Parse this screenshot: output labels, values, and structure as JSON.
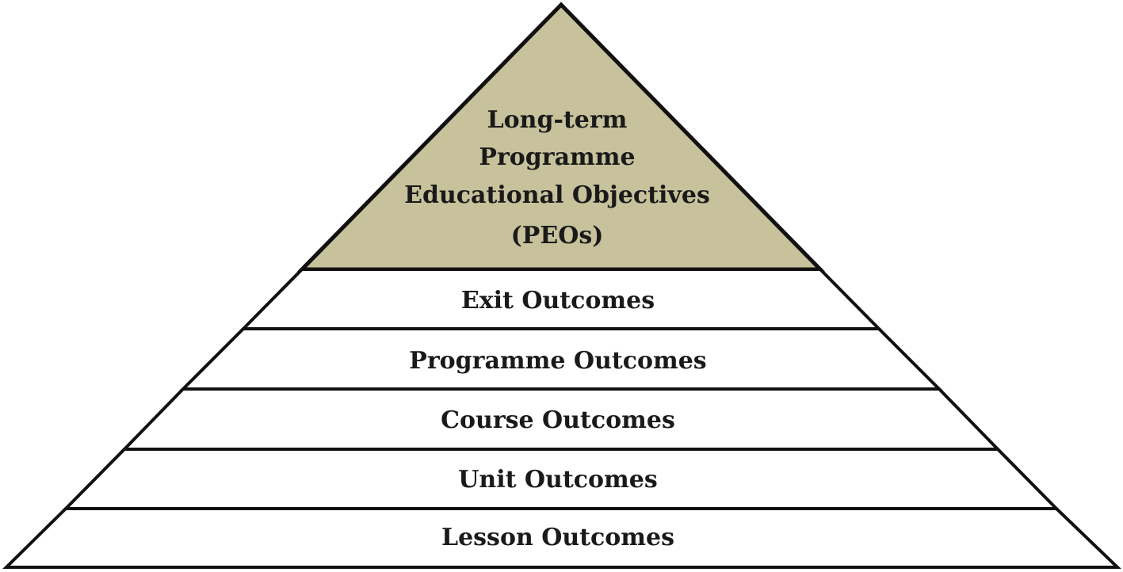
{
  "pyramid": {
    "apex": {
      "lines": [
        "Long-term",
        "Programme",
        "Educational Objectives",
        "(PEOs)"
      ],
      "fill": "#c7c29b"
    },
    "layers": [
      {
        "label": "Exit Outcomes"
      },
      {
        "label": "Programme Outcomes"
      },
      {
        "label": "Course Outcomes"
      },
      {
        "label": "Unit Outcomes"
      },
      {
        "label": "Lesson Outcomes"
      }
    ],
    "stroke_color": "#111111",
    "layer_fill": "#ffffff"
  }
}
